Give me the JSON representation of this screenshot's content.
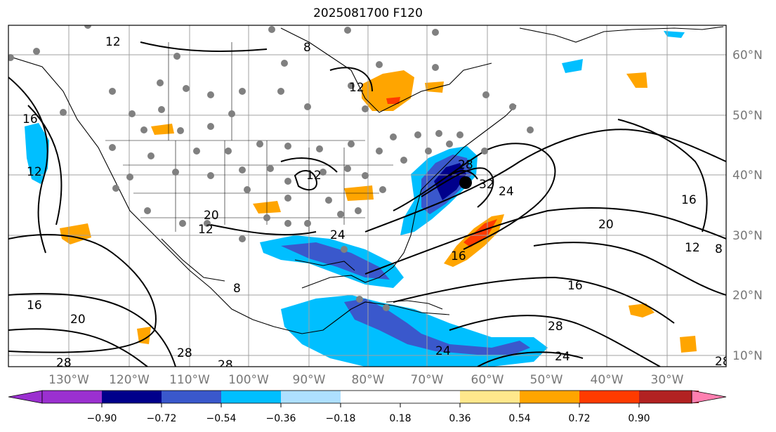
{
  "title": "2025081700 F120",
  "map": {
    "lon_ticks": [
      "130°W",
      "120°W",
      "110°W",
      "100°W",
      "90°W",
      "80°W",
      "70°W",
      "60°W",
      "50°W",
      "40°W",
      "30°W"
    ],
    "lat_ticks": [
      "60°N",
      "50°N",
      "40°N",
      "30°N",
      "20°N",
      "10°N"
    ],
    "contour_labels": [
      "12",
      "16",
      "12",
      "8",
      "12",
      "12",
      "8",
      "12",
      "16",
      "20",
      "24",
      "28",
      "28",
      "32",
      "28",
      "24",
      "20",
      "16",
      "12",
      "16",
      "20",
      "24",
      "28",
      "24",
      "28",
      "28",
      "8",
      "16"
    ],
    "low_marker": "storm-center",
    "station_color": "#808080"
  },
  "colorbar": {
    "ticks": [
      "−0.90",
      "−0.72",
      "−0.54",
      "−0.36",
      "−0.18",
      "0.18",
      "0.36",
      "0.54",
      "0.72",
      "0.90"
    ],
    "colors": [
      "#9b30d0",
      "#00008b",
      "#3a58cc",
      "#00bfff",
      "#aee0ff",
      "#ffffff",
      "#ffe88c",
      "#ffa500",
      "#ff3b00",
      "#b22222",
      "#ff7fb0"
    ]
  }
}
